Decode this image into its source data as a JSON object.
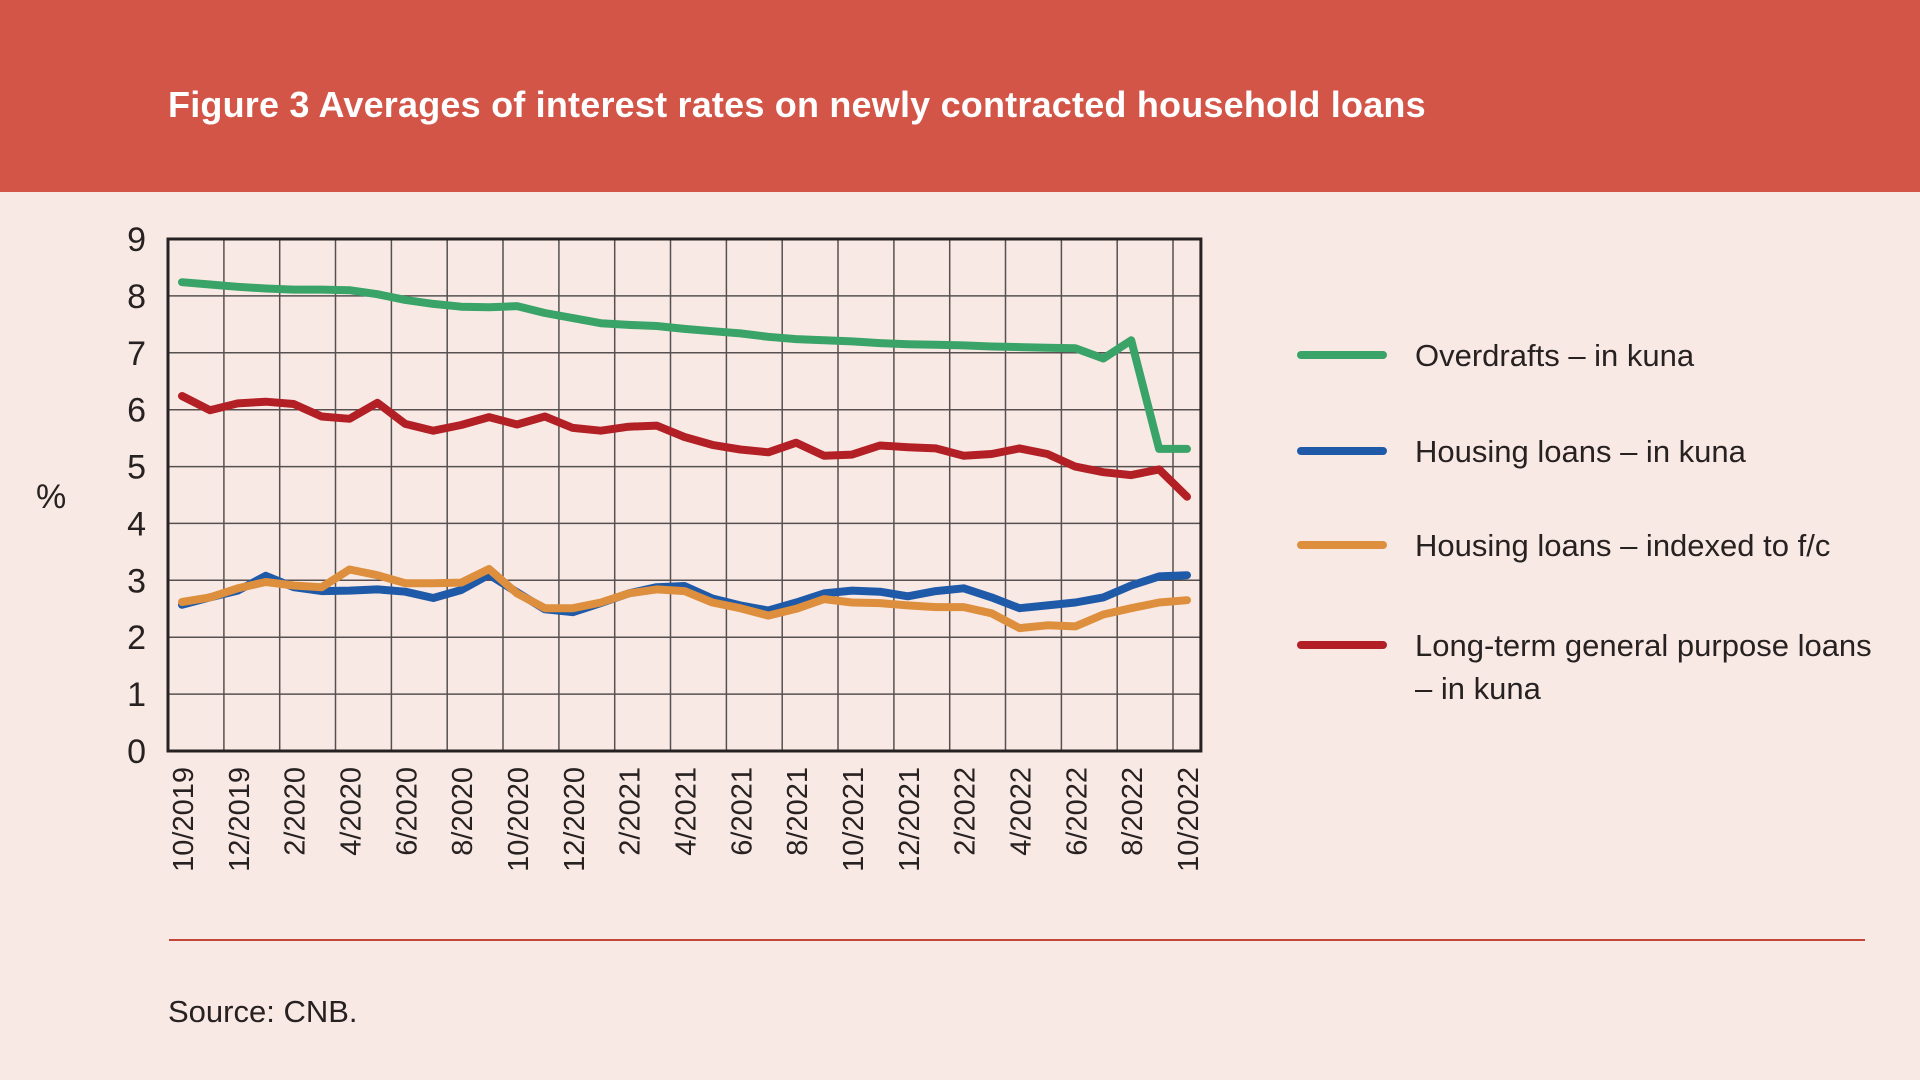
{
  "header": {
    "title": "Figure 3 Averages of interest rates on newly contracted household loans"
  },
  "source": {
    "text": "Source: CNB."
  },
  "colors": {
    "banner": "#d35548",
    "background": "#f9e9e5",
    "grid": "#565150",
    "plot_border": "#262223",
    "axis_text": "#272221",
    "separator": "#c44638",
    "green": "#3aa368",
    "blue": "#1f5aa9",
    "orange": "#dd8f3e",
    "red": "#b22025"
  },
  "legend": {
    "items": [
      {
        "label": "Overdrafts – in kuna",
        "color": "#3aa368"
      },
      {
        "label": "Housing loans – in kuna",
        "color": "#1f5aa9"
      },
      {
        "label": "Housing loans – indexed to f/c",
        "color": "#dd8f3e"
      },
      {
        "label": "Long-term general purpose loans\n– in kuna",
        "color": "#b22025"
      }
    ]
  },
  "chart_data": {
    "type": "line",
    "title": "Figure 3 Averages of interest rates on newly contracted household loans",
    "xlabel": "",
    "ylabel": "%",
    "y_unit": "%",
    "ylim": [
      0,
      9
    ],
    "y_tick_step": 1,
    "y_ticks": [
      0,
      1,
      2,
      3,
      4,
      5,
      6,
      7,
      8,
      9
    ],
    "grid": true,
    "legend_position": "right",
    "x_tick_every": 2,
    "categories": [
      "10/2019",
      "11/2019",
      "12/2019",
      "1/2020",
      "2/2020",
      "3/2020",
      "4/2020",
      "5/2020",
      "6/2020",
      "7/2020",
      "8/2020",
      "9/2020",
      "10/2020",
      "11/2020",
      "12/2020",
      "1/2021",
      "2/2021",
      "3/2021",
      "4/2021",
      "5/2021",
      "6/2021",
      "7/2021",
      "8/2021",
      "9/2021",
      "10/2021",
      "11/2021",
      "12/2021",
      "1/2022",
      "2/2022",
      "3/2022",
      "4/2022",
      "5/2022",
      "6/2022",
      "7/2022",
      "8/2022",
      "9/2022",
      "10/2022"
    ],
    "series": [
      {
        "key": "overdrafts-kuna",
        "name": "Overdrafts – in kuna",
        "color": "#3aa368",
        "values": [
          8.24,
          8.2,
          8.16,
          8.13,
          8.11,
          8.11,
          8.1,
          8.03,
          7.93,
          7.86,
          7.81,
          7.8,
          7.82,
          7.7,
          7.61,
          7.52,
          7.49,
          7.47,
          7.42,
          7.38,
          7.34,
          7.28,
          7.24,
          7.22,
          7.2,
          7.17,
          7.15,
          7.14,
          7.13,
          7.11,
          7.1,
          7.09,
          7.08,
          6.9,
          7.22,
          5.31,
          5.31
        ]
      },
      {
        "key": "longterm-general-purpose-kuna",
        "name": "Long-term general purpose loans – in kuna",
        "color": "#b22025",
        "values": [
          6.24,
          5.99,
          6.11,
          6.14,
          6.1,
          5.88,
          5.84,
          6.12,
          5.75,
          5.63,
          5.73,
          5.87,
          5.74,
          5.88,
          5.68,
          5.63,
          5.7,
          5.72,
          5.52,
          5.38,
          5.3,
          5.25,
          5.42,
          5.19,
          5.21,
          5.37,
          5.34,
          5.32,
          5.19,
          5.22,
          5.32,
          5.22,
          5.0,
          4.9,
          4.85,
          4.95,
          4.47
        ]
      },
      {
        "key": "housing-kuna",
        "name": "Housing loans – in kuna",
        "color": "#1f5aa9",
        "values": [
          2.57,
          2.7,
          2.82,
          3.08,
          2.88,
          2.81,
          2.82,
          2.84,
          2.8,
          2.69,
          2.83,
          3.1,
          2.79,
          2.49,
          2.44,
          2.6,
          2.77,
          2.88,
          2.9,
          2.68,
          2.56,
          2.47,
          2.61,
          2.77,
          2.82,
          2.8,
          2.72,
          2.81,
          2.86,
          2.7,
          2.51,
          2.56,
          2.61,
          2.7,
          2.91,
          3.07,
          3.09
        ]
      },
      {
        "key": "housing-fc",
        "name": "Housing loans – indexed to f/c",
        "color": "#dd8f3e",
        "values": [
          2.62,
          2.7,
          2.86,
          2.97,
          2.91,
          2.88,
          3.19,
          3.09,
          2.95,
          2.95,
          2.96,
          3.2,
          2.77,
          2.51,
          2.51,
          2.61,
          2.77,
          2.84,
          2.81,
          2.61,
          2.51,
          2.38,
          2.5,
          2.67,
          2.61,
          2.6,
          2.56,
          2.53,
          2.53,
          2.42,
          2.16,
          2.21,
          2.19,
          2.4,
          2.51,
          2.61,
          2.65
        ]
      }
    ]
  }
}
